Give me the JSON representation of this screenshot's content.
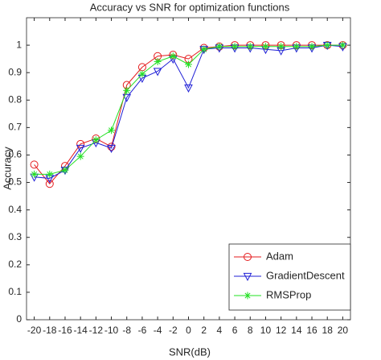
{
  "chart_data": {
    "type": "line",
    "title": "Accuracy vs SNR for optimization functions",
    "x_label": "SNR(dB)",
    "y_label": "Accuracy",
    "x": [
      -20,
      -18,
      -16,
      -14,
      -12,
      -10,
      -8,
      -6,
      -4,
      -2,
      0,
      2,
      4,
      6,
      8,
      10,
      12,
      14,
      16,
      18,
      20
    ],
    "series": [
      {
        "name": "Adam",
        "color": "#e41a1c",
        "marker": "circle",
        "values": [
          0.565,
          0.495,
          0.56,
          0.64,
          0.66,
          0.63,
          0.855,
          0.92,
          0.96,
          0.965,
          0.95,
          0.99,
          0.995,
          1.0,
          1.0,
          1.0,
          1.0,
          1.0,
          1.0,
          1.0,
          1.0
        ]
      },
      {
        "name": "GradientDescent",
        "color": "#1f1fd6",
        "marker": "triangle-down",
        "values": [
          0.52,
          0.515,
          0.545,
          0.625,
          0.645,
          0.625,
          0.81,
          0.88,
          0.905,
          0.95,
          0.845,
          0.985,
          0.99,
          0.99,
          0.99,
          0.985,
          0.98,
          0.99,
          0.99,
          1.0,
          0.995
        ]
      },
      {
        "name": "RMSProp",
        "color": "#22e022",
        "marker": "asterisk",
        "values": [
          0.53,
          0.53,
          0.545,
          0.595,
          0.655,
          0.69,
          0.835,
          0.895,
          0.94,
          0.96,
          0.93,
          0.985,
          0.995,
          0.995,
          0.995,
          0.995,
          0.995,
          0.995,
          0.995,
          1.0,
          1.0
        ]
      }
    ],
    "xlim": [
      -21,
      21
    ],
    "xticks": [
      -20,
      -18,
      -16,
      -14,
      -12,
      -10,
      -8,
      -6,
      -4,
      -2,
      0,
      2,
      4,
      6,
      8,
      10,
      12,
      14,
      16,
      18,
      20
    ],
    "ylim": [
      0,
      1.1
    ],
    "yticks": [
      0,
      0.1,
      0.2,
      0.3,
      0.4,
      0.5,
      0.6,
      0.7,
      0.8,
      0.9,
      1
    ],
    "grid": false,
    "legend": "lower right"
  }
}
